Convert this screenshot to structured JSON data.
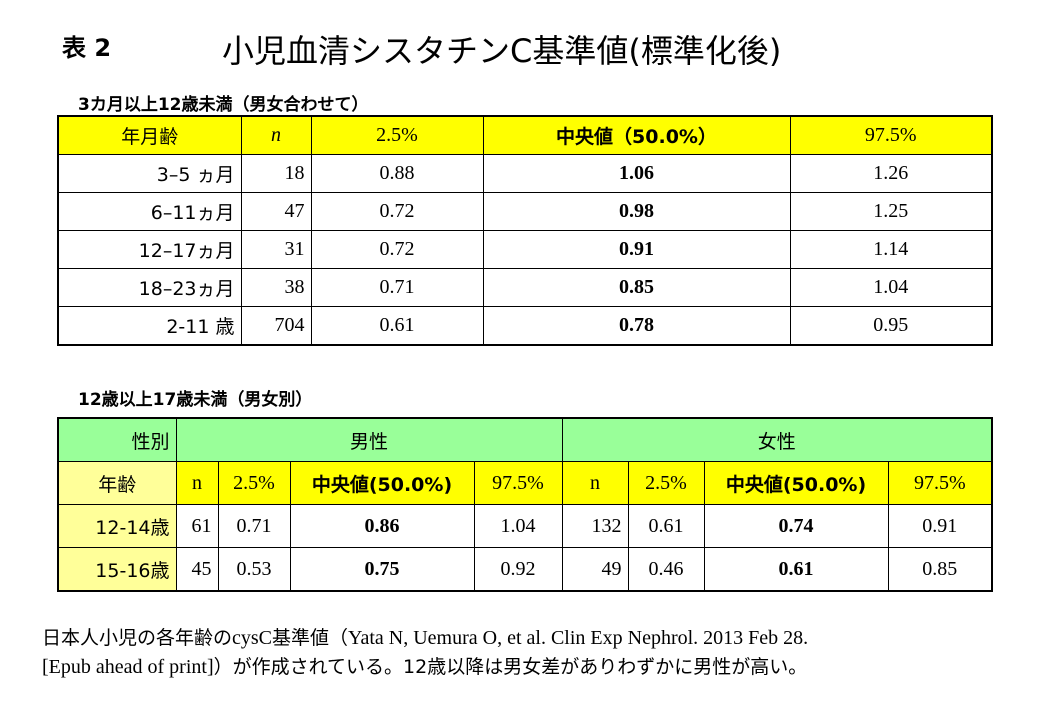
{
  "header": {
    "tag": "表 2",
    "title": "小児血清シスタチンC基準値(標準化後)"
  },
  "table1": {
    "caption": "3カ月以上12歳未満（男女合わせて）",
    "headers": [
      "年月齢",
      "n",
      "2.5%",
      "中央値（50.0%）",
      "97.5%"
    ],
    "rows": [
      [
        "3–5 ヵ月",
        "18",
        "0.88",
        "1.06",
        "1.26"
      ],
      [
        "6–11ヵ月",
        "47",
        "0.72",
        "0.98",
        "1.25"
      ],
      [
        "12–17ヵ月",
        "31",
        "0.72",
        "0.91",
        "1.14"
      ],
      [
        "18–23ヵ月",
        "38",
        "0.71",
        "0.85",
        "1.04"
      ],
      [
        "2-11 歳",
        "704",
        "0.61",
        "0.78",
        "0.95"
      ]
    ]
  },
  "table2": {
    "caption": "12歳以上17歳未満（男女別）",
    "sex_label": "性別",
    "male_label": "男性",
    "female_label": "女性",
    "headers": [
      "年齢",
      "n",
      "2.5%",
      "中央値(50.0%)",
      "97.5%",
      "n",
      "2.5%",
      "中央値(50.0%)",
      "97.5%"
    ],
    "rows": [
      [
        "12-14歳",
        "61",
        "0.71",
        "0.86",
        "1.04",
        "132",
        "0.61",
        "0.74",
        "0.91"
      ],
      [
        "15-16歳",
        "45",
        "0.53",
        "0.75",
        "0.92",
        "49",
        "0.46",
        "0.61",
        "0.85"
      ]
    ]
  },
  "footer": {
    "line1_jp": "日本人小児の各年齢の",
    "line1_cys": "cysC",
    "line1_jp2": "基準値（",
    "line1_ref": "Yata N, Uemura O, et al. Clin Exp Nephrol. 2013 Feb 28.",
    "line2_ref": "[Epub ahead of print]",
    "line2_jp": "）が作成されている。12歳以降は男女差がありわずかに男性が高い。"
  },
  "colors": {
    "header_yellow": "#ffff00",
    "label_pale": "#ffff99",
    "header_green": "#99ff99"
  }
}
